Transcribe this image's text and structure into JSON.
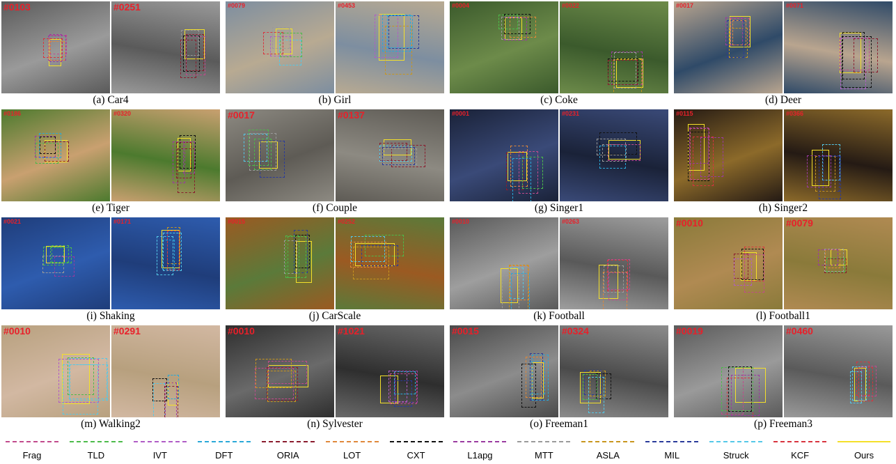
{
  "panels": [
    {
      "caption": "(a)  Car4",
      "frames": [
        "#0103",
        "#0251"
      ],
      "frame_style": [
        "large",
        "large"
      ]
    },
    {
      "caption": "(b)  Girl",
      "frames": [
        "#0079",
        "#0453"
      ],
      "frame_style": [
        "small",
        "small"
      ]
    },
    {
      "caption": "(c)  Coke",
      "frames": [
        "#0004",
        "#0022"
      ],
      "frame_style": [
        "small",
        "small"
      ]
    },
    {
      "caption": "(d)  Deer",
      "frames": [
        "#0017",
        "#0071"
      ],
      "frame_style": [
        "small",
        "small"
      ]
    },
    {
      "caption": "(e)  Tiger",
      "frames": [
        "#0186",
        "#0320"
      ],
      "frame_style": [
        "small",
        "small"
      ]
    },
    {
      "caption": "(f)  Couple",
      "frames": [
        "#0017",
        "#0137"
      ],
      "frame_style": [
        "large",
        "large"
      ]
    },
    {
      "caption": "(g)  Singer1",
      "frames": [
        "#0001",
        "#0231"
      ],
      "frame_style": [
        "small",
        "small"
      ]
    },
    {
      "caption": "(h)  Singer2",
      "frames": [
        "#0115",
        "#0366"
      ],
      "frame_style": [
        "small",
        "small"
      ]
    },
    {
      "caption": "(i)  Shaking",
      "frames": [
        "#0021",
        "#0171"
      ],
      "frame_style": [
        "small",
        "small"
      ]
    },
    {
      "caption": "(j)  CarScale",
      "frames": [
        "#0015",
        "#0252"
      ],
      "frame_style": [
        "small",
        "small"
      ]
    },
    {
      "caption": "(k)  Football",
      "frames": [
        "#0010",
        "#0263"
      ],
      "frame_style": [
        "small",
        "small"
      ]
    },
    {
      "caption": "(l)  Football1",
      "frames": [
        "#0010",
        "#0079"
      ],
      "frame_style": [
        "large",
        "large"
      ]
    },
    {
      "caption": "(m)  Walking2",
      "frames": [
        "#0010",
        "#0291"
      ],
      "frame_style": [
        "large",
        "large"
      ]
    },
    {
      "caption": "(n)  Sylvester",
      "frames": [
        "#0010",
        "#1021"
      ],
      "frame_style": [
        "large",
        "large"
      ]
    },
    {
      "caption": "(o)  Freeman1",
      "frames": [
        "#0015",
        "#0324"
      ],
      "frame_style": [
        "large",
        "large"
      ]
    },
    {
      "caption": "(p)  Freeman3",
      "frames": [
        "#0019",
        "#0460"
      ],
      "frame_style": [
        "large",
        "large"
      ]
    }
  ],
  "scenes": [
    [
      "#5a5a5a",
      "#9a9a9a"
    ],
    [
      "#7d8ea0",
      "#b8aa92"
    ],
    [
      "#3b5a2c",
      "#6d8b4a"
    ],
    [
      "#b9a58f",
      "#2f4a68"
    ],
    [
      "#4c7a2e",
      "#c9a070"
    ],
    [
      "#8d8a82",
      "#5e5b55"
    ],
    [
      "#1a2238",
      "#3a4a78"
    ],
    [
      "#241a14",
      "#8c6a2a"
    ],
    [
      "#1f3d7a",
      "#2e5cae"
    ],
    [
      "#9b5a22",
      "#5b7a3a"
    ],
    [
      "#595959",
      "#9e9e9e"
    ],
    [
      "#8a7a3a",
      "#b08a52"
    ],
    [
      "#b7a07e",
      "#d2b8a2"
    ],
    [
      "#2e2e2e",
      "#6a6a6a"
    ],
    [
      "#4a4a4a",
      "#8c8c8c"
    ],
    [
      "#5a5a5a",
      "#9a9a9a"
    ]
  ],
  "legend": [
    {
      "label": "Frag",
      "color": "#c14a8c"
    },
    {
      "label": "TLD",
      "color": "#4cbb4a"
    },
    {
      "label": "IVT",
      "color": "#b05cc6"
    },
    {
      "label": "DFT",
      "color": "#2aa8d8"
    },
    {
      "label": "ORIA",
      "color": "#8a1c2e"
    },
    {
      "label": "LOT",
      "color": "#e0883a"
    },
    {
      "label": "CXT",
      "color": "#111111"
    },
    {
      "label": "L1apg",
      "color": "#9a3aa0"
    },
    {
      "label": "MTT",
      "color": "#9a9a9a"
    },
    {
      "label": "ASLA",
      "color": "#c8961e"
    },
    {
      "label": "MIL",
      "color": "#2a3a9a"
    },
    {
      "label": "Struck",
      "color": "#54c8e8"
    },
    {
      "label": "KCF",
      "color": "#d8343e"
    },
    {
      "label": "Ours",
      "color": "#f4e02a"
    }
  ]
}
